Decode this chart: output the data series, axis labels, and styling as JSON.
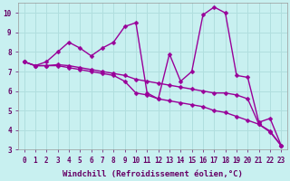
{
  "xlabel": "Windchill (Refroidissement éolien,°C)",
  "bg_color": "#c8f0f0",
  "line_color": "#990099",
  "grid_color": "#b0dede",
  "x_data": [
    0,
    1,
    2,
    3,
    4,
    5,
    6,
    7,
    8,
    9,
    10,
    11,
    12,
    13,
    14,
    15,
    16,
    17,
    18,
    19,
    20,
    21,
    22,
    23
  ],
  "line1": [
    7.5,
    7.3,
    7.5,
    8.0,
    8.5,
    8.2,
    7.8,
    8.2,
    8.5,
    9.3,
    9.5,
    5.9,
    5.6,
    7.9,
    6.5,
    7.0,
    9.9,
    10.3,
    10.0,
    6.8,
    6.7,
    4.4,
    4.6,
    3.2
  ],
  "line2": [
    7.5,
    7.3,
    7.3,
    7.3,
    7.2,
    7.1,
    7.0,
    6.9,
    6.8,
    6.5,
    5.9,
    5.8,
    5.6,
    5.5,
    5.4,
    5.3,
    5.2,
    5.0,
    4.9,
    4.7,
    4.5,
    4.3,
    3.9,
    3.2
  ],
  "line3": [
    7.5,
    7.3,
    7.3,
    7.35,
    7.3,
    7.2,
    7.1,
    7.0,
    6.9,
    6.8,
    6.6,
    6.5,
    6.4,
    6.3,
    6.2,
    6.1,
    6.0,
    5.9,
    5.9,
    5.8,
    5.6,
    4.3,
    3.95,
    3.2
  ],
  "ylim_min": 3.0,
  "ylim_max": 10.5,
  "xlim_min": -0.5,
  "xlim_max": 23.5,
  "yticks": [
    3,
    4,
    5,
    6,
    7,
    8,
    9,
    10
  ],
  "xticks": [
    0,
    1,
    2,
    3,
    4,
    5,
    6,
    7,
    8,
    9,
    10,
    11,
    12,
    13,
    14,
    15,
    16,
    17,
    18,
    19,
    20,
    21,
    22,
    23
  ],
  "xtick_labels": [
    "0",
    "1",
    "2",
    "3",
    "4",
    "5",
    "6",
    "7",
    "8",
    "9",
    "10",
    "11",
    "12",
    "13",
    "14",
    "15",
    "16",
    "17",
    "18",
    "19",
    "20",
    "21",
    "22",
    "23"
  ],
  "markersize": 2.5,
  "linewidth": 1.0,
  "tick_fontsize": 5.5,
  "xlabel_fontsize": 6.5
}
